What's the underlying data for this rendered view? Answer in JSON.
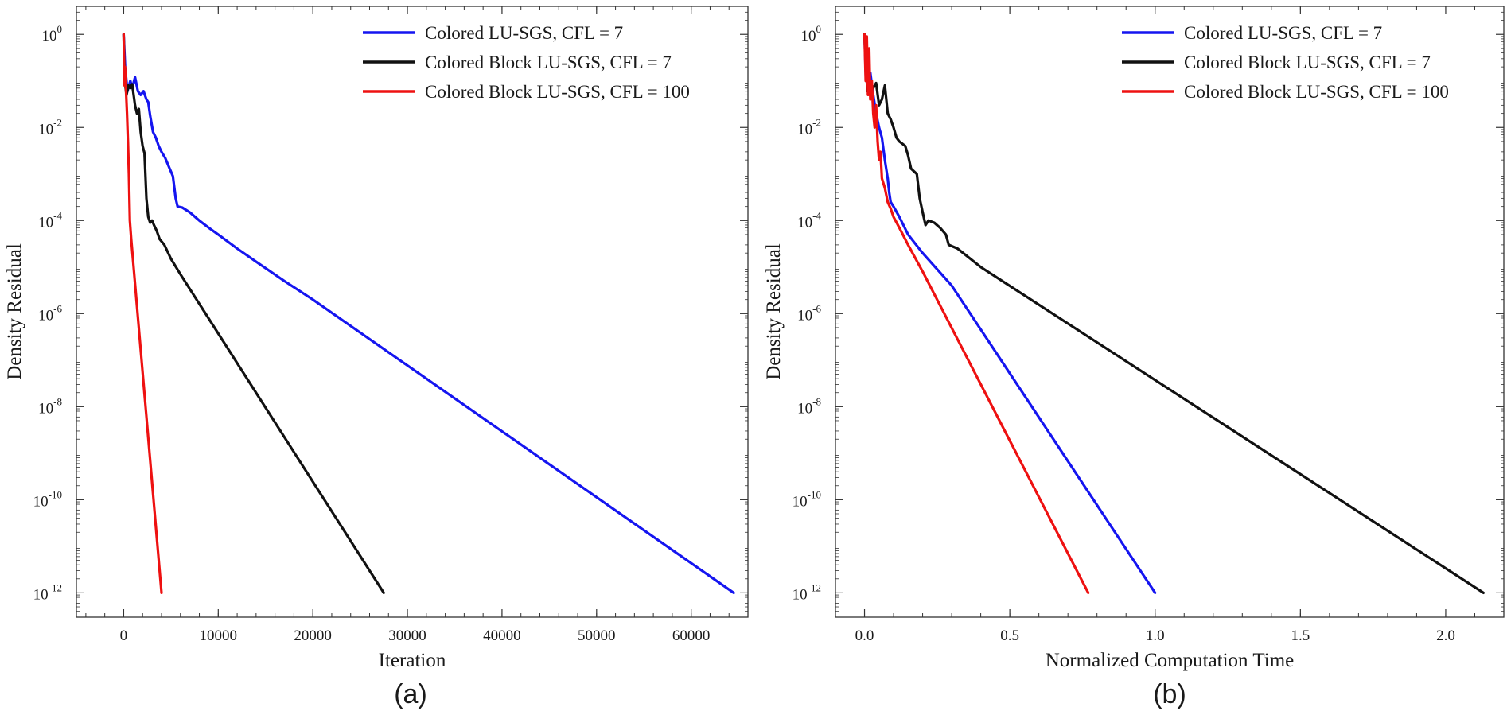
{
  "chart_data": [
    {
      "type": "line",
      "panel_label": "(a)",
      "xlabel": "Iteration",
      "ylabel": "Density Residual",
      "x_scale": "linear",
      "y_scale": "log",
      "xlim": [
        -5000,
        66000
      ],
      "ylim": [
        3e-13,
        4
      ],
      "xticks": [
        0,
        10000,
        20000,
        30000,
        40000,
        50000,
        60000
      ],
      "xtick_labels": [
        "0",
        "10000",
        "20000",
        "30000",
        "40000",
        "50000",
        "60000"
      ],
      "yticks": [
        1e-12,
        1e-10,
        1e-08,
        1e-06,
        0.0001,
        0.01,
        1
      ],
      "ytick_labels": [
        [
          "10",
          "-12"
        ],
        [
          "10",
          "-10"
        ],
        [
          "10",
          "-8"
        ],
        [
          "10",
          "-6"
        ],
        [
          "10",
          "-4"
        ],
        [
          "10",
          "-2"
        ],
        [
          "10",
          "0"
        ]
      ],
      "legend_position": "top-right",
      "grid": false,
      "series": [
        {
          "name": "Colored LU-SGS, CFL = 7",
          "color": "#1515f0",
          "points": [
            [
              0,
              1.0
            ],
            [
              150,
              0.2
            ],
            [
              400,
              0.06
            ],
            [
              700,
              0.1
            ],
            [
              900,
              0.07
            ],
            [
              1200,
              0.12
            ],
            [
              1500,
              0.06
            ],
            [
              1800,
              0.05
            ],
            [
              2100,
              0.06
            ],
            [
              2400,
              0.04
            ],
            [
              2600,
              0.035
            ],
            [
              2800,
              0.018
            ],
            [
              3100,
              0.008
            ],
            [
              3400,
              0.006
            ],
            [
              3700,
              0.004
            ],
            [
              4000,
              0.003
            ],
            [
              4400,
              0.0022
            ],
            [
              4800,
              0.0014
            ],
            [
              5200,
              0.0009
            ],
            [
              5500,
              0.0003
            ],
            [
              5700,
              0.0002
            ],
            [
              6200,
              0.00019
            ],
            [
              7000,
              0.00015
            ],
            [
              8000,
              0.0001
            ],
            [
              9000,
              7e-05
            ],
            [
              10000,
              5e-05
            ],
            [
              12000,
              2.5e-05
            ],
            [
              14000,
              1.3e-05
            ],
            [
              17000,
              5e-06
            ],
            [
              20000,
              2e-06
            ],
            [
              64500,
              1e-12
            ]
          ]
        },
        {
          "name": "Colored Block LU-SGS, CFL = 7",
          "color": "#111111",
          "points": [
            [
              0,
              1.0
            ],
            [
              100,
              0.1
            ],
            [
              300,
              0.05
            ],
            [
              500,
              0.08
            ],
            [
              700,
              0.07
            ],
            [
              900,
              0.085
            ],
            [
              1200,
              0.03
            ],
            [
              1400,
              0.02
            ],
            [
              1600,
              0.025
            ],
            [
              1800,
              0.008
            ],
            [
              2000,
              0.004
            ],
            [
              2200,
              0.0028
            ],
            [
              2400,
              0.0003
            ],
            [
              2600,
              0.00012
            ],
            [
              2800,
              9e-05
            ],
            [
              3000,
              0.0001
            ],
            [
              3200,
              8e-05
            ],
            [
              3500,
              6e-05
            ],
            [
              3800,
              4e-05
            ],
            [
              4300,
              3e-05
            ],
            [
              5000,
              1.5e-05
            ],
            [
              6000,
              7e-06
            ],
            [
              27500,
              1e-12
            ]
          ]
        },
        {
          "name": "Colored Block LU-SGS, CFL = 100",
          "color": "#ee1111",
          "points": [
            [
              0,
              1.0
            ],
            [
              80,
              0.08
            ],
            [
              150,
              0.2
            ],
            [
              250,
              0.06
            ],
            [
              350,
              0.02
            ],
            [
              450,
              0.005
            ],
            [
              550,
              0.001
            ],
            [
              650,
              0.0001
            ],
            [
              800,
              4e-05
            ],
            [
              4000,
              1e-12
            ]
          ]
        }
      ]
    },
    {
      "type": "line",
      "panel_label": "(b)",
      "xlabel": "Normalized Computation Time",
      "ylabel": "Density Residual",
      "x_scale": "linear",
      "y_scale": "log",
      "xlim": [
        -0.1,
        2.2
      ],
      "ylim": [
        3e-13,
        4
      ],
      "xticks": [
        0,
        0.5,
        1,
        1.5,
        2
      ],
      "xtick_labels": [
        "0.0",
        "0.5",
        "1.0",
        "1.5",
        "2.0"
      ],
      "yticks": [
        1e-12,
        1e-10,
        1e-08,
        1e-06,
        0.0001,
        0.01,
        1
      ],
      "ytick_labels": [
        [
          "10",
          "-12"
        ],
        [
          "10",
          "-10"
        ],
        [
          "10",
          "-8"
        ],
        [
          "10",
          "-6"
        ],
        [
          "10",
          "-4"
        ],
        [
          "10",
          "-2"
        ],
        [
          "10",
          "0"
        ]
      ],
      "legend_position": "top-right",
      "grid": false,
      "series": [
        {
          "name": "Colored LU-SGS, CFL = 7",
          "color": "#1515f0",
          "points": [
            [
              0,
              1.0
            ],
            [
              0.005,
              0.1
            ],
            [
              0.01,
              0.3
            ],
            [
              0.015,
              0.08
            ],
            [
              0.02,
              0.15
            ],
            [
              0.03,
              0.05
            ],
            [
              0.04,
              0.02
            ],
            [
              0.05,
              0.01
            ],
            [
              0.06,
              0.006
            ],
            [
              0.07,
              0.002
            ],
            [
              0.08,
              0.0008
            ],
            [
              0.085,
              0.0004
            ],
            [
              0.09,
              0.00025
            ],
            [
              0.1,
              0.0002
            ],
            [
              0.12,
              0.00012
            ],
            [
              0.15,
              5e-05
            ],
            [
              0.2,
              2e-05
            ],
            [
              0.3,
              4e-06
            ],
            [
              1.0,
              1e-12
            ]
          ]
        },
        {
          "name": "Colored Block LU-SGS, CFL = 7",
          "color": "#111111",
          "points": [
            [
              0,
              1.0
            ],
            [
              0.005,
              0.2
            ],
            [
              0.01,
              0.06
            ],
            [
              0.02,
              0.08
            ],
            [
              0.03,
              0.07
            ],
            [
              0.04,
              0.09
            ],
            [
              0.05,
              0.03
            ],
            [
              0.06,
              0.04
            ],
            [
              0.07,
              0.08
            ],
            [
              0.08,
              0.02
            ],
            [
              0.09,
              0.015
            ],
            [
              0.1,
              0.01
            ],
            [
              0.11,
              0.006
            ],
            [
              0.12,
              0.005
            ],
            [
              0.14,
              0.004
            ],
            [
              0.15,
              0.0025
            ],
            [
              0.16,
              0.0013
            ],
            [
              0.18,
              0.001
            ],
            [
              0.19,
              0.0003
            ],
            [
              0.2,
              0.00015
            ],
            [
              0.21,
              8e-05
            ],
            [
              0.22,
              0.0001
            ],
            [
              0.24,
              9e-05
            ],
            [
              0.26,
              7e-05
            ],
            [
              0.28,
              5e-05
            ],
            [
              0.29,
              3e-05
            ],
            [
              0.32,
              2.5e-05
            ],
            [
              0.4,
              1e-05
            ],
            [
              2.13,
              1e-12
            ]
          ]
        },
        {
          "name": "Colored Block LU-SGS, CFL = 100",
          "color": "#ee1111",
          "points": [
            [
              0,
              1.0
            ],
            [
              0.004,
              0.1
            ],
            [
              0.008,
              0.9
            ],
            [
              0.012,
              0.05
            ],
            [
              0.016,
              0.5
            ],
            [
              0.02,
              0.04
            ],
            [
              0.025,
              0.1
            ],
            [
              0.03,
              0.02
            ],
            [
              0.035,
              0.01
            ],
            [
              0.04,
              0.03
            ],
            [
              0.045,
              0.005
            ],
            [
              0.05,
              0.002
            ],
            [
              0.055,
              0.003
            ],
            [
              0.06,
              0.0008
            ],
            [
              0.07,
              0.0005
            ],
            [
              0.08,
              0.00025
            ],
            [
              0.09,
              0.00018
            ],
            [
              0.1,
              0.00012
            ],
            [
              0.12,
              7e-05
            ],
            [
              0.15,
              3e-05
            ],
            [
              0.2,
              8e-06
            ],
            [
              0.77,
              1e-12
            ]
          ]
        }
      ]
    }
  ]
}
